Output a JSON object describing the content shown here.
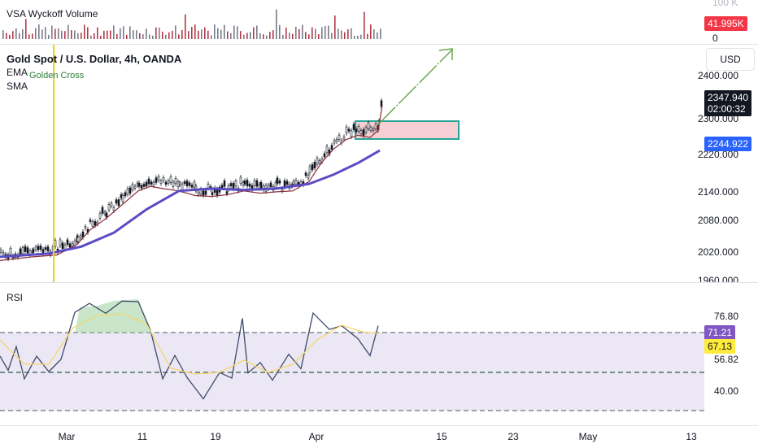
{
  "volume_pane": {
    "indicator_name": "VSA Wyckoff Volume",
    "axis_top": "100 K",
    "axis_bottom": "0",
    "value_tag": "41.995K",
    "value_tag_color": "#f23645"
  },
  "price_pane": {
    "symbol_title": "Gold Spot / U.S. Dollar, 4h, OANDA",
    "indicator_ema": "EMA",
    "indicator_sma": "SMA",
    "annotation": "Golden Cross",
    "currency_button": "USD",
    "axis_labels": [
      "2400.000",
      "2300.000",
      "2220.000",
      "2140.000",
      "2080.000",
      "2020.000",
      "1960.000"
    ],
    "last_price": "2347.940",
    "countdown": "02:00:32",
    "ma_value": "2244.922",
    "last_price_color": "#131722",
    "ma_color": "#2962ff",
    "box_fill_color": "#f5cfd4",
    "box_border_color": "#26a69a",
    "arrow_color": "#6aa84f",
    "vertical_line_color": "#f5d300"
  },
  "rsi_pane": {
    "indicator_name": "RSI",
    "axis_labels": [
      "76.80",
      "56.82",
      "40.00"
    ],
    "rsi_value": "71.21",
    "rsi_color": "#7e57c2",
    "signal_value": "67.13",
    "signal_color": "#ffeb3b"
  },
  "time_axis": {
    "labels": [
      "Mar",
      "11",
      "19",
      "Apr",
      "15",
      "23",
      "May",
      "13"
    ]
  }
}
